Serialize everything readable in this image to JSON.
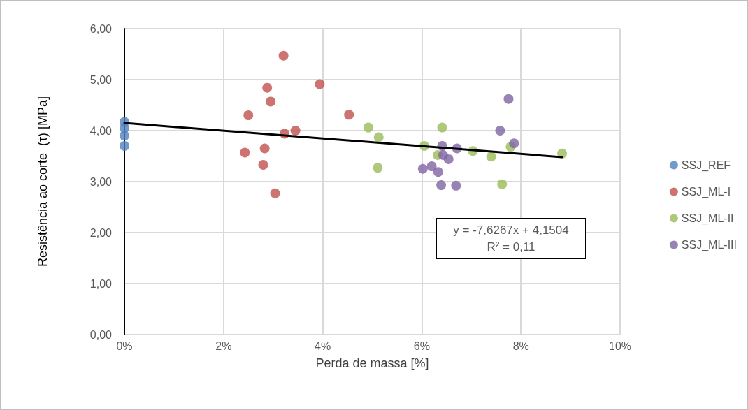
{
  "chart_data": {
    "type": "scatter",
    "xlabel": "Perda de massa [%]",
    "ylabel": "Resistência ao corte  (τ) [MPa]",
    "xlim": [
      0,
      0.1
    ],
    "xticks": [
      {
        "value": 0,
        "label": "0%"
      },
      {
        "value": 0.02,
        "label": "2%"
      },
      {
        "value": 0.04,
        "label": "4%"
      },
      {
        "value": 0.06,
        "label": "6%"
      },
      {
        "value": 0.08,
        "label": "8%"
      },
      {
        "value": 0.1,
        "label": "10%"
      }
    ],
    "ylim": [
      0,
      6
    ],
    "yticks": [
      {
        "value": 0,
        "label": "0,00"
      },
      {
        "value": 1,
        "label": "1,00"
      },
      {
        "value": 2,
        "label": "2,00"
      },
      {
        "value": 3,
        "label": "3,00"
      },
      {
        "value": 4,
        "label": "4,00"
      },
      {
        "value": 5,
        "label": "5,00"
      },
      {
        "value": 6,
        "label": "6,00"
      }
    ],
    "grid": true,
    "legend": "right",
    "marker": "circle",
    "annotations": [
      "y = -7,6267x + 4,1504\nR² = 0,11"
    ],
    "series": [
      {
        "name": "SSJ_REF",
        "color": "#4f81bd",
        "x": [
          0,
          0,
          0,
          0
        ],
        "values": [
          4.17,
          4.05,
          3.9,
          3.7
        ]
      },
      {
        "name": "SSJ_ML-I",
        "color": "#c0504d",
        "x": [
          0.0321,
          0.0288,
          0.0295,
          0.0394,
          0.025,
          0.0453,
          0.0323,
          0.0345,
          0.0243,
          0.0283,
          0.028,
          0.0304
        ],
        "values": [
          5.47,
          4.84,
          4.57,
          4.91,
          4.3,
          4.31,
          3.94,
          4.0,
          3.57,
          3.65,
          3.33,
          2.77
        ]
      },
      {
        "name": "SSJ_ML-II",
        "color": "#9bbb59",
        "x": [
          0.0492,
          0.0513,
          0.0511,
          0.0641,
          0.0605,
          0.0632,
          0.0703,
          0.074,
          0.0779,
          0.0762,
          0.0883
        ],
        "values": [
          4.06,
          3.87,
          3.27,
          4.06,
          3.7,
          3.52,
          3.6,
          3.49,
          3.68,
          2.95,
          3.55
        ]
      },
      {
        "name": "SSJ_ML-III",
        "color": "#8064a2",
        "x": [
          0.0775,
          0.0758,
          0.0786,
          0.0641,
          0.0671,
          0.0643,
          0.0654,
          0.0602,
          0.062,
          0.0633,
          0.0639,
          0.0669
        ],
        "values": [
          4.62,
          4.0,
          3.75,
          3.7,
          3.65,
          3.52,
          3.44,
          3.25,
          3.3,
          3.19,
          2.93,
          2.92
        ]
      },
      {
        "type": "line",
        "color": "#000000",
        "marker": "none",
        "x": [
          0,
          0.0883
        ],
        "values": [
          4.15,
          3.48
        ]
      }
    ]
  }
}
